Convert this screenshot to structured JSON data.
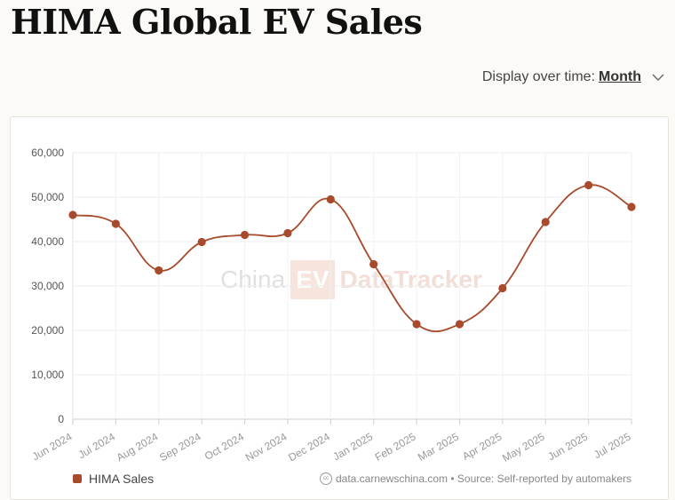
{
  "page": {
    "title": "HIMA Global EV Sales",
    "display_label": "Display over time:",
    "display_value": "Month"
  },
  "watermark": {
    "part1": "China",
    "part2": "EV",
    "part3": "DataTracker"
  },
  "legend": {
    "label": "HIMA Sales",
    "color": "#a84a2c"
  },
  "source": {
    "text": "data.carnewschina.com • Source: Self-reported by automakers"
  },
  "chart_data": {
    "type": "line",
    "title": "HIMA Global EV Sales",
    "categories": [
      "Jun 2024",
      "Jul 2024",
      "Aug 2024",
      "Sep 2024",
      "Oct 2024",
      "Nov 2024",
      "Dec 2024",
      "Jan 2025",
      "Feb 2025",
      "Mar 2025",
      "Apr 2025",
      "May 2025",
      "Jun 2025",
      "Jul 2025"
    ],
    "series": [
      {
        "name": "HIMA Sales",
        "color": "#a84a2c",
        "values": [
          46000,
          44000,
          33500,
          39900,
          41500,
          41900,
          49500,
          34900,
          21400,
          21400,
          29500,
          44400,
          52700,
          47800
        ]
      }
    ],
    "ylim": [
      0,
      60000
    ],
    "yticks": [
      0,
      10000,
      20000,
      30000,
      40000,
      50000,
      60000
    ],
    "ytick_labels": [
      "0",
      "10,000",
      "20,000",
      "30,000",
      "40,000",
      "50,000",
      "60,000"
    ],
    "grid": true,
    "legend_position": "bottom-left"
  }
}
